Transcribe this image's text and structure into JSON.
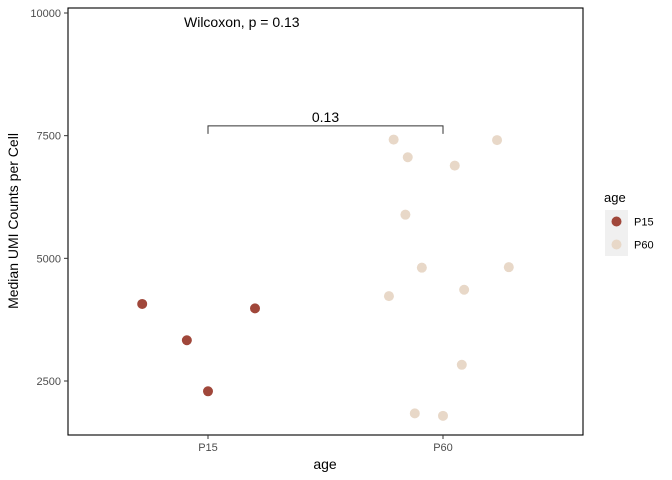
{
  "chart_data": {
    "type": "scatter",
    "xlabel": "age",
    "ylabel": "Median UMI Counts per Cell",
    "categories": [
      "P15",
      "P60"
    ],
    "ylim": [
      1500,
      10000
    ],
    "yticks": [
      2500,
      5000,
      7500,
      10000
    ],
    "grid": false,
    "legend": {
      "title": "age",
      "placement": "right"
    },
    "annotation": "Wilcoxon, p = 0.13",
    "comparison": {
      "from": "P15",
      "to": "P60",
      "y": 7700,
      "label": "0.13"
    },
    "series": [
      {
        "name": "P15",
        "color": "#A0473A",
        "points": [
          {
            "x": 0.72,
            "y": 4070
          },
          {
            "x": 0.91,
            "y": 3330
          },
          {
            "x": 1.0,
            "y": 2290
          },
          {
            "x": 1.2,
            "y": 3980
          }
        ]
      },
      {
        "name": "P60",
        "color": "#E8D8C8",
        "points": [
          {
            "x": 1.77,
            "y": 4230
          },
          {
            "x": 1.79,
            "y": 7420
          },
          {
            "x": 1.84,
            "y": 5890
          },
          {
            "x": 1.85,
            "y": 7060
          },
          {
            "x": 1.88,
            "y": 1840
          },
          {
            "x": 1.91,
            "y": 4810
          },
          {
            "x": 2.0,
            "y": 1790
          },
          {
            "x": 2.05,
            "y": 6890
          },
          {
            "x": 2.08,
            "y": 2830
          },
          {
            "x": 2.09,
            "y": 4360
          },
          {
            "x": 2.23,
            "y": 7410
          },
          {
            "x": 2.28,
            "y": 4820
          }
        ]
      }
    ]
  }
}
